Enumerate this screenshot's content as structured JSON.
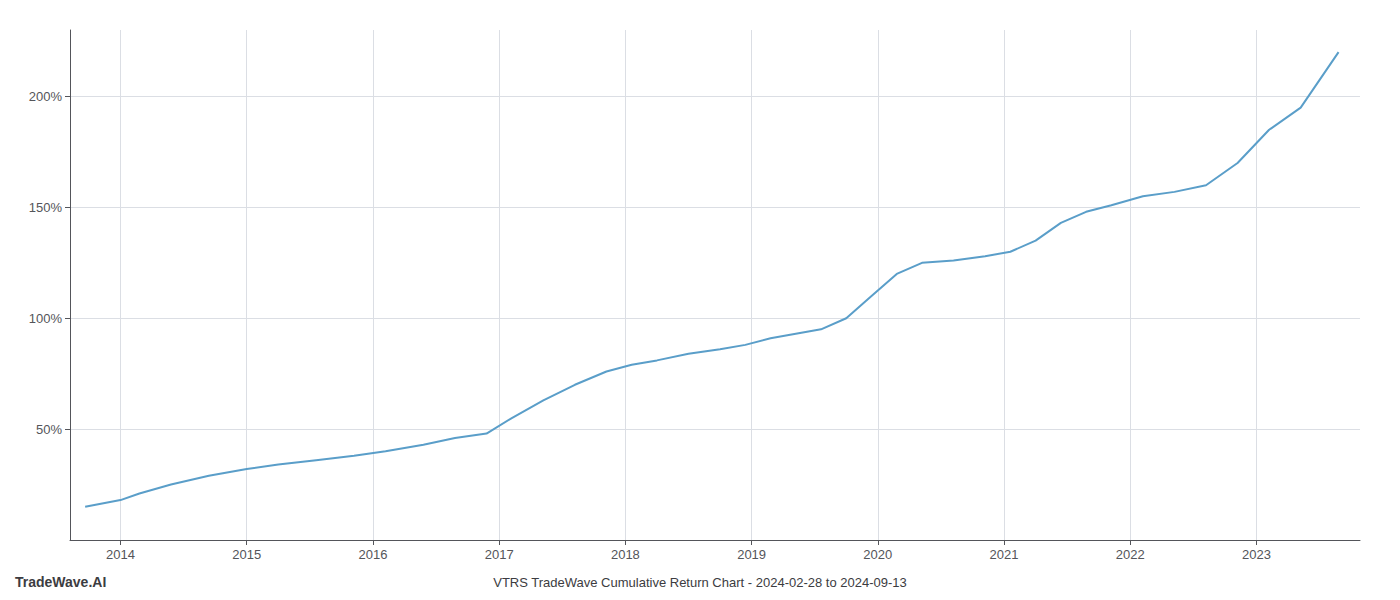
{
  "chart_data": {
    "type": "line",
    "title": "VTRS TradeWave Cumulative Return Chart - 2024-02-28 to 2024-09-13",
    "annotations": [
      "TradeWave.AI"
    ],
    "x": [
      2013.72,
      2014.0,
      2014.15,
      2014.4,
      2014.7,
      2015.0,
      2015.25,
      2015.55,
      2015.85,
      2016.1,
      2016.4,
      2016.65,
      2016.9,
      2017.1,
      2017.35,
      2017.6,
      2017.85,
      2018.05,
      2018.25,
      2018.5,
      2018.75,
      2018.95,
      2019.15,
      2019.35,
      2019.55,
      2019.75,
      2019.95,
      2020.15,
      2020.35,
      2020.6,
      2020.85,
      2021.05,
      2021.25,
      2021.45,
      2021.65,
      2021.85,
      2022.1,
      2022.35,
      2022.6,
      2022.85,
      2023.1,
      2023.35,
      2023.65
    ],
    "values": [
      15,
      18,
      21,
      25,
      29,
      32,
      34,
      36,
      38,
      40,
      43,
      46,
      48,
      55,
      63,
      70,
      76,
      79,
      81,
      84,
      86,
      88,
      91,
      93,
      95,
      100,
      110,
      120,
      125,
      126,
      128,
      130,
      135,
      143,
      148,
      151,
      155,
      157,
      160,
      170,
      185,
      195,
      220
    ],
    "color": "#5a9ec9",
    "xlim": [
      2013.6,
      2023.82
    ],
    "xticks": [
      2014,
      2015,
      2016,
      2017,
      2018,
      2019,
      2020,
      2021,
      2022,
      2023
    ],
    "ylim": [
      0,
      230
    ],
    "yticks": [
      {
        "value": 50,
        "label": "50%"
      },
      {
        "value": 100,
        "label": "100%"
      },
      {
        "value": 150,
        "label": "150%"
      },
      {
        "value": 200,
        "label": "200%"
      }
    ],
    "grid": true
  }
}
